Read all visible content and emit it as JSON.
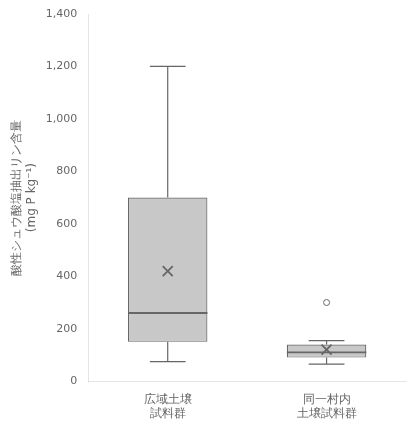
{
  "chart_data": {
    "type": "box",
    "categories": [
      [
        "広域土壌",
        "試料群"
      ],
      [
        "同一村内",
        "土壌試料群"
      ]
    ],
    "boxes": [
      {
        "whisker_low": 75,
        "q1": 150,
        "median": 260,
        "q3": 700,
        "whisker_high": 1200,
        "mean": 420,
        "outliers": []
      },
      {
        "whisker_low": 65,
        "q1": 90,
        "median": 110,
        "q3": 140,
        "whisker_high": 155,
        "mean": 120,
        "outliers": [
          300
        ]
      }
    ],
    "ylabel": [
      "酸性シュウ酸塩抽出リン含量",
      "(mg P kg⁻¹)"
    ],
    "ylim": [
      0,
      1400
    ],
    "yticks": [
      0,
      200,
      400,
      600,
      800,
      {
        "value": 1000,
        "label": "1,000"
      },
      {
        "value": 1200,
        "label": "1,200"
      },
      {
        "value": 1400,
        "label": "1,400"
      }
    ],
    "color": "#c8c8c8",
    "marker": "x",
    "grid": false
  }
}
